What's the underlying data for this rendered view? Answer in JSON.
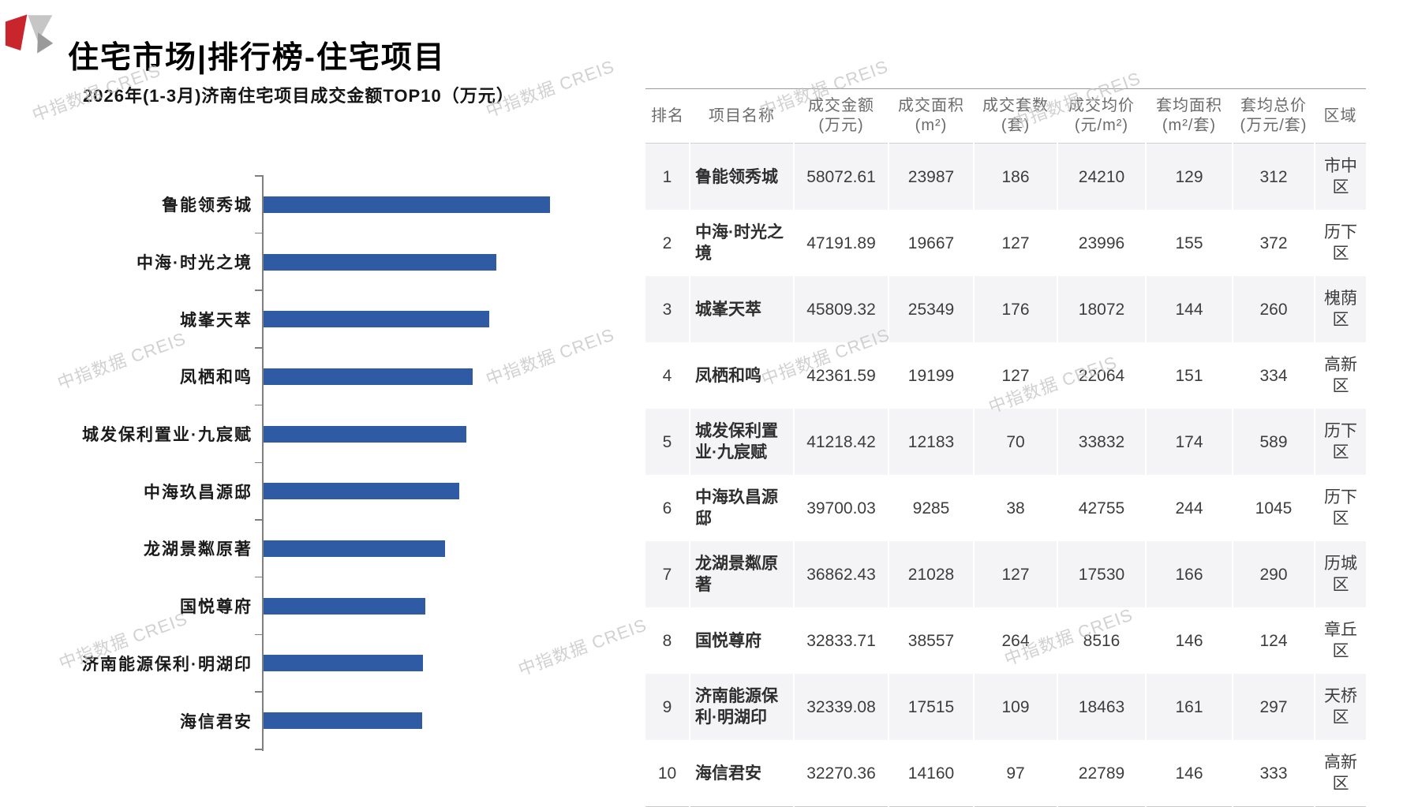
{
  "page": {
    "title": "住宅市场|排行榜-住宅项目"
  },
  "watermark": {
    "text": "中指数据 CREIS"
  },
  "colors": {
    "bar_blue": "#2F5BA5",
    "logo_red": "#C9252C",
    "logo_light_gray": "#C6C6C6",
    "logo_dark_gray": "#9A9A9A",
    "shaded_row": "#F4F4F6",
    "axis_gray": "#7F7F7F"
  },
  "chart_data": {
    "type": "bar",
    "orientation": "horizontal",
    "title": "2026年(1-3月)济南住宅项目成交金额TOP10（万元）",
    "categories": [
      "鲁能领秀城",
      "中海·时光之境",
      "城峯天萃",
      "凤栖和鸣",
      "城发保利置业·九宸赋",
      "中海玖昌源邸",
      "龙湖景粼原著",
      "国悦尊府",
      "济南能源保利·明湖印",
      "海信君安"
    ],
    "values": [
      58072.61,
      47191.89,
      45809.32,
      42361.59,
      41218.42,
      39700.03,
      36862.43,
      32833.71,
      32339.08,
      32270.36
    ],
    "xlabel": "",
    "ylabel": "",
    "xlim": [
      0,
      60000
    ],
    "grid": false,
    "legend": false,
    "bar_color": "#2F5BA5"
  },
  "table": {
    "headers": [
      {
        "l1": "排名",
        "l2": ""
      },
      {
        "l1": "项目名称",
        "l2": ""
      },
      {
        "l1": "成交金额",
        "l2": "(万元)"
      },
      {
        "l1": "成交面积",
        "l2": "(m²)"
      },
      {
        "l1": "成交套数",
        "l2": "(套)"
      },
      {
        "l1": "成交均价",
        "l2": "(元/m²)"
      },
      {
        "l1": "套均面积",
        "l2": "(m²/套)"
      },
      {
        "l1": "套均总价",
        "l2": "(万元/套)"
      },
      {
        "l1": "区域",
        "l2": ""
      }
    ],
    "rows": [
      [
        "1",
        "鲁能领秀城",
        "58072.61",
        "23987",
        "186",
        "24210",
        "129",
        "312",
        "市中区"
      ],
      [
        "2",
        "中海·时光之境",
        "47191.89",
        "19667",
        "127",
        "23996",
        "155",
        "372",
        "历下区"
      ],
      [
        "3",
        "城峯天萃",
        "45809.32",
        "25349",
        "176",
        "18072",
        "144",
        "260",
        "槐荫区"
      ],
      [
        "4",
        "凤栖和鸣",
        "42361.59",
        "19199",
        "127",
        "22064",
        "151",
        "334",
        "高新区"
      ],
      [
        "5",
        "城发保利置业·九宸赋",
        "41218.42",
        "12183",
        "70",
        "33832",
        "174",
        "589",
        "历下区"
      ],
      [
        "6",
        "中海玖昌源邸",
        "39700.03",
        "9285",
        "38",
        "42755",
        "244",
        "1045",
        "历下区"
      ],
      [
        "7",
        "龙湖景粼原著",
        "36862.43",
        "21028",
        "127",
        "17530",
        "166",
        "290",
        "历城区"
      ],
      [
        "8",
        "国悦尊府",
        "32833.71",
        "38557",
        "264",
        "8516",
        "146",
        "124",
        "章丘区"
      ],
      [
        "9",
        "济南能源保利·明湖印",
        "32339.08",
        "17515",
        "109",
        "18463",
        "161",
        "297",
        "天桥区"
      ],
      [
        "10",
        "海信君安",
        "32270.36",
        "14160",
        "97",
        "22789",
        "146",
        "333",
        "高新区"
      ]
    ]
  }
}
